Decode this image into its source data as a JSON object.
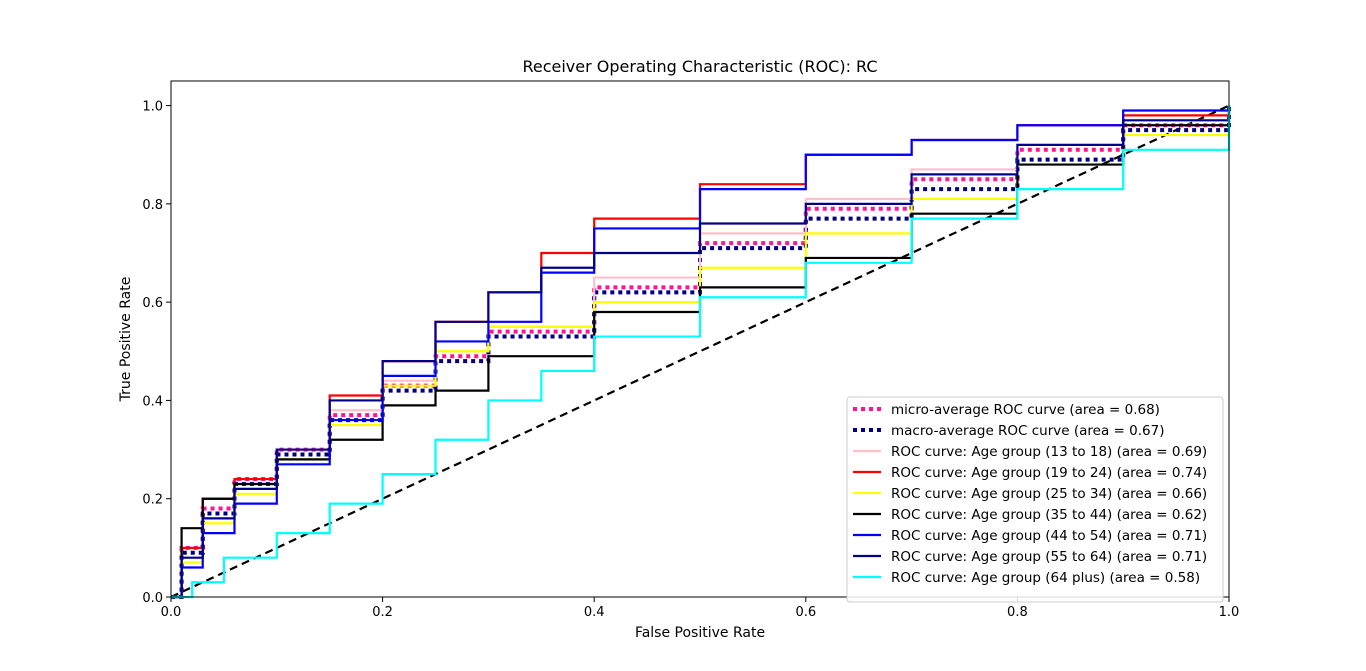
{
  "chart_data": {
    "type": "line",
    "title": "Receiver Operating Characteristic (ROC): RC",
    "xlabel": "False Positive Rate",
    "ylabel": "True Positive Rate",
    "xlim": [
      0.0,
      1.0
    ],
    "ylim": [
      0.0,
      1.05
    ],
    "x_ticks": [
      "0.0",
      "0.2",
      "0.4",
      "0.6",
      "0.8",
      "1.0"
    ],
    "y_ticks": [
      "0.0",
      "0.2",
      "0.4",
      "0.6",
      "0.8",
      "1.0"
    ],
    "grid": false,
    "legend_position": "lower-right",
    "reference_line": {
      "x": [
        0,
        1
      ],
      "y": [
        0,
        1
      ],
      "color": "#000000",
      "style": "dashed"
    },
    "series": [
      {
        "name": "micro-average ROC curve (area = 0.68)",
        "color": "#ff1493",
        "style": "dotted",
        "x": [
          0,
          0.01,
          0.03,
          0.06,
          0.1,
          0.15,
          0.2,
          0.25,
          0.3,
          0.4,
          0.5,
          0.6,
          0.7,
          0.8,
          0.9,
          1.0
        ],
        "y": [
          0,
          0.1,
          0.18,
          0.24,
          0.3,
          0.37,
          0.43,
          0.49,
          0.54,
          0.63,
          0.72,
          0.79,
          0.85,
          0.91,
          0.96,
          1.0
        ]
      },
      {
        "name": "macro-average ROC curve (area = 0.67)",
        "color": "#000080",
        "style": "dotted",
        "x": [
          0,
          0.01,
          0.03,
          0.06,
          0.1,
          0.15,
          0.2,
          0.25,
          0.3,
          0.4,
          0.5,
          0.6,
          0.7,
          0.8,
          0.9,
          1.0
        ],
        "y": [
          0,
          0.09,
          0.17,
          0.23,
          0.29,
          0.36,
          0.42,
          0.48,
          0.53,
          0.62,
          0.71,
          0.77,
          0.83,
          0.89,
          0.95,
          1.0
        ]
      },
      {
        "name": "ROC curve: Age group (13 to 18) (area = 0.69)",
        "color": "#ffc0cb",
        "style": "solid",
        "x": [
          0,
          0.01,
          0.03,
          0.06,
          0.1,
          0.15,
          0.2,
          0.25,
          0.3,
          0.4,
          0.5,
          0.6,
          0.7,
          0.8,
          0.9,
          1.0
        ],
        "y": [
          0,
          0.08,
          0.16,
          0.23,
          0.3,
          0.38,
          0.44,
          0.5,
          0.55,
          0.65,
          0.74,
          0.81,
          0.87,
          0.92,
          0.97,
          1.0
        ]
      },
      {
        "name": "ROC curve: Age group (19 to 24) (area = 0.74)",
        "color": "#ff0000",
        "style": "solid",
        "x": [
          0,
          0.01,
          0.03,
          0.06,
          0.1,
          0.15,
          0.2,
          0.25,
          0.3,
          0.35,
          0.4,
          0.5,
          0.6,
          0.7,
          0.8,
          0.9,
          1.0
        ],
        "y": [
          0,
          0.1,
          0.2,
          0.24,
          0.3,
          0.41,
          0.48,
          0.56,
          0.62,
          0.7,
          0.77,
          0.84,
          0.9,
          0.93,
          0.96,
          0.98,
          1.0
        ]
      },
      {
        "name": "ROC curve: Age group (25 to 34) (area = 0.66)",
        "color": "#ffff00",
        "style": "solid",
        "x": [
          0,
          0.01,
          0.03,
          0.06,
          0.1,
          0.15,
          0.2,
          0.25,
          0.3,
          0.4,
          0.5,
          0.6,
          0.7,
          0.8,
          0.9,
          1.0
        ],
        "y": [
          0,
          0.07,
          0.15,
          0.21,
          0.28,
          0.35,
          0.43,
          0.5,
          0.55,
          0.6,
          0.67,
          0.74,
          0.81,
          0.88,
          0.94,
          1.0
        ]
      },
      {
        "name": "ROC curve: Age group (35 to 44) (area = 0.62)",
        "color": "#000000",
        "style": "solid",
        "x": [
          0,
          0.01,
          0.03,
          0.06,
          0.1,
          0.15,
          0.2,
          0.25,
          0.3,
          0.4,
          0.5,
          0.6,
          0.7,
          0.8,
          0.9,
          1.0
        ],
        "y": [
          0,
          0.14,
          0.2,
          0.23,
          0.28,
          0.32,
          0.39,
          0.42,
          0.49,
          0.58,
          0.63,
          0.69,
          0.78,
          0.88,
          0.96,
          1.0
        ]
      },
      {
        "name": "ROC curve: Age group (44 to 54) (area = 0.71)",
        "color": "#0000ff",
        "style": "solid",
        "x": [
          0,
          0.01,
          0.03,
          0.06,
          0.1,
          0.15,
          0.2,
          0.25,
          0.3,
          0.35,
          0.4,
          0.5,
          0.6,
          0.7,
          0.8,
          0.9,
          1.0
        ],
        "y": [
          0,
          0.06,
          0.13,
          0.19,
          0.27,
          0.36,
          0.45,
          0.52,
          0.56,
          0.66,
          0.75,
          0.83,
          0.9,
          0.93,
          0.96,
          0.99,
          1.0
        ]
      },
      {
        "name": "ROC curve: Age group (55 to 64) (area = 0.71)",
        "color": "#00008b",
        "style": "solid",
        "x": [
          0,
          0.01,
          0.03,
          0.06,
          0.1,
          0.15,
          0.2,
          0.25,
          0.3,
          0.35,
          0.4,
          0.5,
          0.6,
          0.7,
          0.8,
          0.9,
          1.0
        ],
        "y": [
          0,
          0.08,
          0.16,
          0.22,
          0.3,
          0.4,
          0.48,
          0.56,
          0.62,
          0.67,
          0.7,
          0.76,
          0.8,
          0.86,
          0.92,
          0.97,
          1.0
        ]
      },
      {
        "name": "ROC curve: Age group (64 plus) (area = 0.58)",
        "color": "#00ffff",
        "style": "solid",
        "x": [
          0,
          0.02,
          0.05,
          0.1,
          0.15,
          0.2,
          0.25,
          0.3,
          0.35,
          0.4,
          0.5,
          0.6,
          0.7,
          0.8,
          0.9,
          1.0
        ],
        "y": [
          0,
          0.03,
          0.08,
          0.13,
          0.19,
          0.25,
          0.32,
          0.4,
          0.46,
          0.53,
          0.61,
          0.68,
          0.77,
          0.83,
          0.91,
          1.0
        ]
      }
    ]
  }
}
